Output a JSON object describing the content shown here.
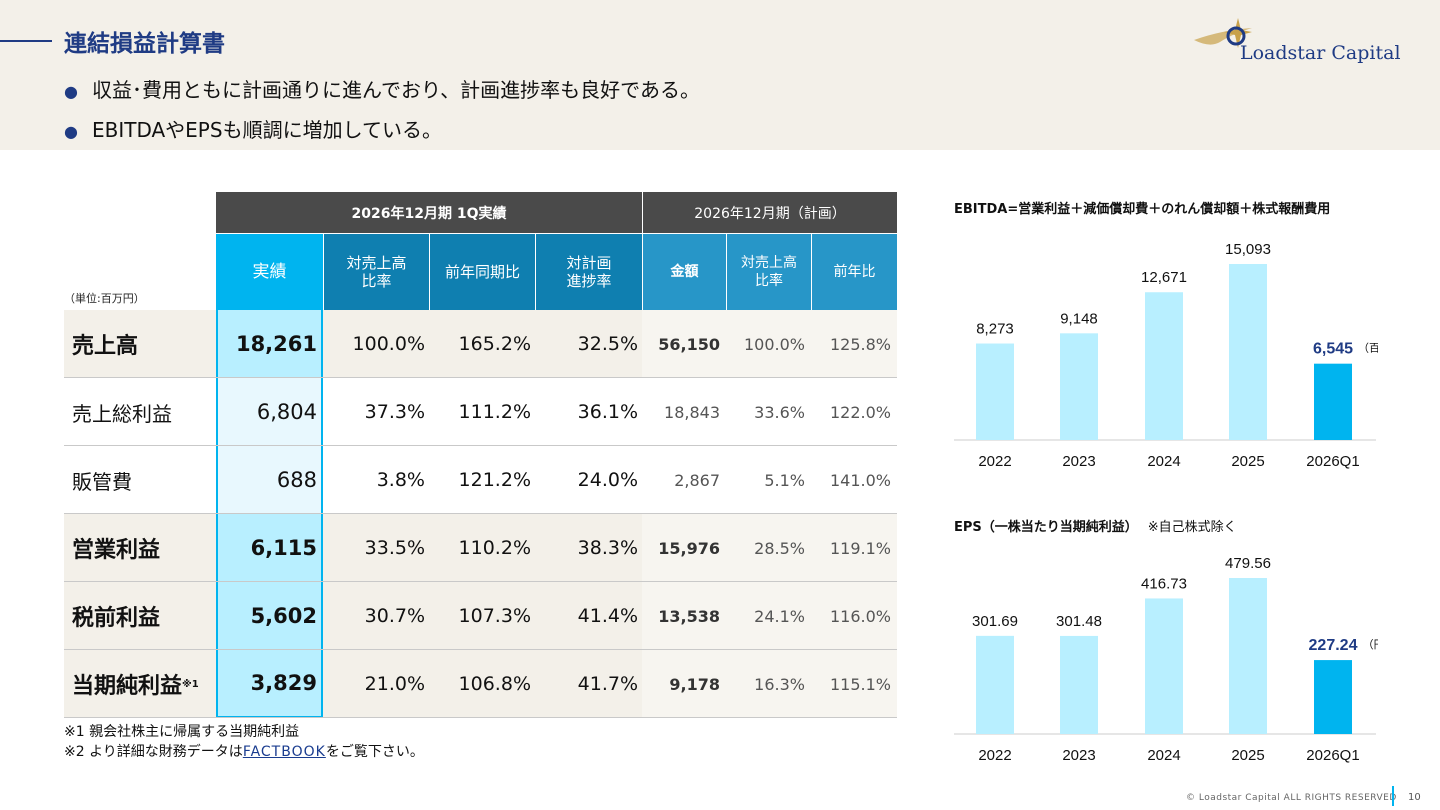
{
  "header": {
    "title": "連結損益計算書",
    "bullets": [
      "収益･費用ともに計画通りに進んでおり、計画進捗率も良好である。",
      "EBITDAやEPSも順調に増加している。"
    ],
    "logo_text": "Loadstar Capital"
  },
  "table": {
    "unit_label": "（単位:百万円）",
    "group_actual": "2026年12月期 1Q実績",
    "group_plan": "2026年12月期（計画）",
    "columns": {
      "actual": "実績",
      "sales_ratio": "対売上高\n比率",
      "yoy": "前年同期比",
      "progress": "対計画\n進捗率",
      "plan_amount": "金額",
      "plan_ratio": "対売上高\n比率",
      "plan_yoy": "前年比"
    },
    "rows": [
      {
        "label": "売上高",
        "sup": "",
        "actual": "18,261",
        "ratio": "100.0%",
        "yoy": "165.2%",
        "progress": "32.5%",
        "plan_amount": "56,150",
        "plan_ratio": "100.0%",
        "plan_yoy": "125.8%",
        "emphasis": true
      },
      {
        "label": "売上総利益",
        "sup": "",
        "actual": "6,804",
        "ratio": "37.3%",
        "yoy": "111.2%",
        "progress": "36.1%",
        "plan_amount": "18,843",
        "plan_ratio": "33.6%",
        "plan_yoy": "122.0%",
        "emphasis": false
      },
      {
        "label": "販管費",
        "sup": "",
        "actual": "688",
        "ratio": "3.8%",
        "yoy": "121.2%",
        "progress": "24.0%",
        "plan_amount": "2,867",
        "plan_ratio": "5.1%",
        "plan_yoy": "141.0%",
        "emphasis": false
      },
      {
        "label": "営業利益",
        "sup": "",
        "actual": "6,115",
        "ratio": "33.5%",
        "yoy": "110.2%",
        "progress": "38.3%",
        "plan_amount": "15,976",
        "plan_ratio": "28.5%",
        "plan_yoy": "119.1%",
        "emphasis": true
      },
      {
        "label": "税前利益",
        "sup": "",
        "actual": "5,602",
        "ratio": "30.7%",
        "yoy": "107.3%",
        "progress": "41.4%",
        "plan_amount": "13,538",
        "plan_ratio": "24.1%",
        "plan_yoy": "116.0%",
        "emphasis": true
      },
      {
        "label": "当期純利益",
        "sup": "※1",
        "actual": "3,829",
        "ratio": "21.0%",
        "yoy": "106.8%",
        "progress": "41.7%",
        "plan_amount": "9,178",
        "plan_ratio": "16.3%",
        "plan_yoy": "115.1%",
        "emphasis": true
      }
    ]
  },
  "footnotes": {
    "note1": "※1 親会社株主に帰属する当期純利益",
    "note2_prefix": "※2 より詳細な財務データは",
    "note2_link": "FACTBOOK",
    "note2_suffix": "をご覧下さい。"
  },
  "chart_data": [
    {
      "type": "bar",
      "title": "EBITDA=営業利益＋減価償却費＋のれん償却額＋株式報酬費用",
      "categories": [
        "2022",
        "2023",
        "2024",
        "2025",
        "2026Q1"
      ],
      "values": [
        8273,
        9148,
        12671,
        15093,
        6545
      ],
      "value_labels": [
        "8,273",
        "9,148",
        "12,671",
        "15,093",
        "6,545"
      ],
      "highlight_unit": "（百万円）",
      "colors": {
        "past": "#b8efff",
        "current": "#00b4ef",
        "current_label": "#1f3b84"
      }
    },
    {
      "type": "bar",
      "title": "EPS（一株当たり当期純利益）",
      "title_note": "※自己株式除く",
      "categories": [
        "2022",
        "2023",
        "2024",
        "2025",
        "2026Q1"
      ],
      "values": [
        301.69,
        301.48,
        416.73,
        479.56,
        227.24
      ],
      "value_labels": [
        "301.69",
        "301.48",
        "416.73",
        "479.56",
        "227.24"
      ],
      "highlight_unit": "（円）",
      "colors": {
        "past": "#b8efff",
        "current": "#00b4ef",
        "current_label": "#1f3b84"
      }
    }
  ],
  "footer": {
    "copyright": "© Loadstar Capital ALL RIGHTS RESERVED",
    "page": "10"
  }
}
